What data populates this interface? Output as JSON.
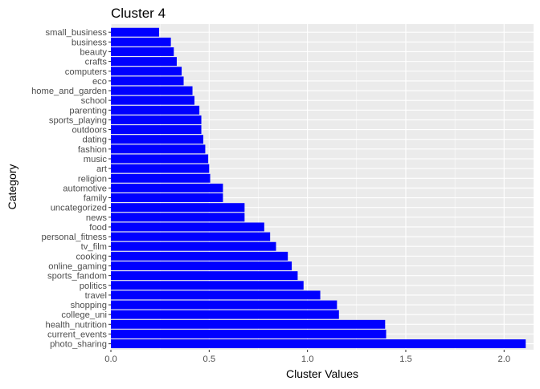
{
  "chart_data": {
    "type": "bar",
    "orientation": "horizontal",
    "title": "Cluster 4",
    "xlabel": "Cluster Values",
    "ylabel": "Category",
    "xlim": [
      0,
      2.15
    ],
    "xticks": [
      0.0,
      0.5,
      1.0,
      1.5,
      2.0
    ],
    "xtick_labels": [
      "0.0",
      "0.5",
      "1.0",
      "1.5",
      "2.0"
    ],
    "grid": true,
    "bar_color": "#0000FF",
    "panel_color": "#EBEBEB",
    "grid_color": "#FFFFFF",
    "categories": [
      "small_business",
      "business",
      "beauty",
      "crafts",
      "computers",
      "eco",
      "home_and_garden",
      "school",
      "parenting",
      "sports_playing",
      "outdoors",
      "dating",
      "fashion",
      "music",
      "art",
      "religion",
      "automotive",
      "family",
      "uncategorized",
      "news",
      "food",
      "personal_fitness",
      "tv_film",
      "cooking",
      "online_gaming",
      "sports_fandom",
      "politics",
      "travel",
      "shopping",
      "college_uni",
      "health_nutrition",
      "current_events",
      "photo_sharing"
    ],
    "values": [
      0.245,
      0.305,
      0.32,
      0.335,
      0.36,
      0.37,
      0.415,
      0.425,
      0.45,
      0.46,
      0.46,
      0.47,
      0.48,
      0.495,
      0.5,
      0.505,
      0.57,
      0.57,
      0.68,
      0.68,
      0.78,
      0.81,
      0.84,
      0.9,
      0.92,
      0.95,
      0.98,
      1.065,
      1.15,
      1.16,
      1.395,
      1.4,
      2.11
    ]
  }
}
